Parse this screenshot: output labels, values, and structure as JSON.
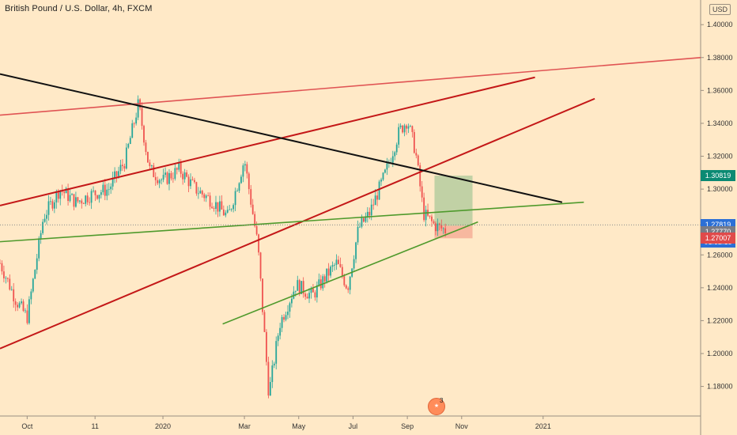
{
  "title": "British Pound / U.S. Dollar, 4h, FXCM",
  "currency": "USD",
  "chart_data": {
    "type": "candlestick",
    "y_axis": {
      "ticks": [
        "1.40000",
        "1.38000",
        "1.36000",
        "1.34000",
        "1.32000",
        "1.30000",
        "1.28000",
        "1.26000",
        "1.24000",
        "1.22000",
        "1.20000",
        "1.18000"
      ],
      "tick_values": [
        1.4,
        1.38,
        1.36,
        1.34,
        1.32,
        1.3,
        1.28,
        1.26,
        1.24,
        1.22,
        1.2,
        1.18
      ],
      "ylim": [
        1.162,
        1.415
      ]
    },
    "x_axis": {
      "ticks": [
        "Oct",
        "11",
        "2020",
        "Mar",
        "May",
        "Jul",
        "Sep",
        "Nov",
        "2021"
      ],
      "tick_positions": [
        1,
        3.5,
        6,
        9,
        11,
        13,
        15,
        17,
        20
      ],
      "xlim": [
        0,
        25.8
      ]
    },
    "price_path": [
      [
        0,
        1.255
      ],
      [
        0.6,
        1.232
      ],
      [
        1.0,
        1.222
      ],
      [
        1.6,
        1.283
      ],
      [
        2.2,
        1.3
      ],
      [
        2.8,
        1.292
      ],
      [
        3.4,
        1.297
      ],
      [
        4.0,
        1.3
      ],
      [
        4.6,
        1.317
      ],
      [
        5.1,
        1.352
      ],
      [
        5.5,
        1.312
      ],
      [
        6.0,
        1.305
      ],
      [
        6.6,
        1.312
      ],
      [
        7.2,
        1.3
      ],
      [
        7.8,
        1.293
      ],
      [
        8.4,
        1.283
      ],
      [
        9.0,
        1.318
      ],
      [
        9.5,
        1.265
      ],
      [
        9.9,
        1.175
      ],
      [
        10.3,
        1.218
      ],
      [
        10.9,
        1.242
      ],
      [
        11.5,
        1.235
      ],
      [
        12.0,
        1.247
      ],
      [
        12.4,
        1.255
      ],
      [
        12.8,
        1.24
      ],
      [
        13.2,
        1.276
      ],
      [
        13.6,
        1.285
      ],
      [
        14.2,
        1.31
      ],
      [
        14.7,
        1.335
      ],
      [
        15.0,
        1.342
      ],
      [
        15.3,
        1.323
      ],
      [
        15.6,
        1.285
      ],
      [
        16.0,
        1.278
      ],
      [
        16.4,
        1.275
      ]
    ],
    "trendlines": [
      {
        "name": "top-resistance",
        "color": "#e05454",
        "points": [
          [
            0,
            1.345
          ],
          [
            25.8,
            1.38
          ]
        ]
      },
      {
        "name": "upper-channel",
        "color": "#c41818",
        "points": [
          [
            0,
            1.29
          ],
          [
            19.7,
            1.368
          ]
        ]
      },
      {
        "name": "lower-channel",
        "color": "#c41818",
        "points": [
          [
            0,
            1.203
          ],
          [
            21.9,
            1.355
          ]
        ]
      },
      {
        "name": "down-trend",
        "color": "#111111",
        "points": [
          [
            0,
            1.37
          ],
          [
            20.7,
            1.292
          ]
        ]
      },
      {
        "name": "green-long",
        "color": "#4f9a2c",
        "points": [
          [
            0,
            1.268
          ],
          [
            21.5,
            1.292
          ]
        ]
      },
      {
        "name": "green-rising",
        "color": "#4f9a2c",
        "points": [
          [
            8.2,
            1.218
          ],
          [
            17.6,
            1.28
          ]
        ]
      }
    ],
    "position": {
      "entry": 1.2777,
      "target": 1.30819,
      "stop": 1.27007,
      "x_start": 16.0,
      "x_end": 17.4
    },
    "price_labels": {
      "target": "1.30819",
      "last": "1.27819",
      "countdown": "01:32:15",
      "entry": "1.27770",
      "stop": "1.27007"
    },
    "colors": {
      "target": "#0b8a73",
      "last": "#2b6fd6",
      "entry": "#787b86",
      "stop": "#e04a4a",
      "candle_up": "#26a69a",
      "candle_down": "#ef5350"
    }
  },
  "events": {
    "count": "3"
  }
}
